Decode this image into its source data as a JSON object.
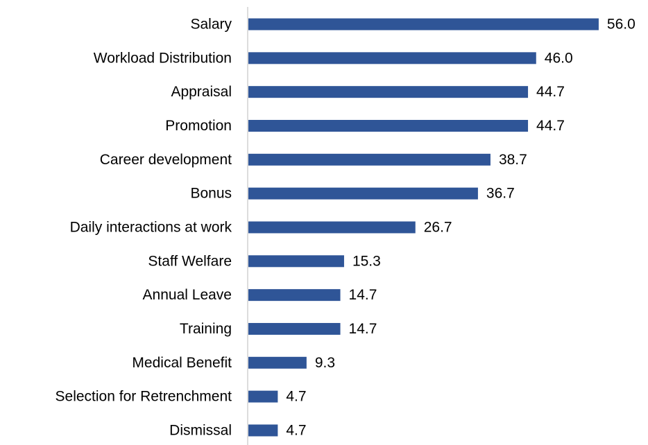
{
  "chart_data": {
    "type": "bar",
    "orientation": "horizontal",
    "categories": [
      "Salary",
      "Workload Distribution",
      "Appraisal",
      "Promotion",
      "Career development",
      "Bonus",
      "Daily interactions at work",
      "Staff Welfare",
      "Annual Leave",
      "Training",
      "Medical Benefit",
      "Selection for Retrenchment",
      "Dismissal"
    ],
    "values": [
      56.0,
      46.0,
      44.7,
      44.7,
      38.7,
      36.7,
      26.7,
      15.3,
      14.7,
      14.7,
      9.3,
      4.7,
      4.7
    ],
    "value_labels": [
      "56.0",
      "46.0",
      "44.7",
      "44.7",
      "38.7",
      "36.7",
      "26.7",
      "15.3",
      "14.7",
      "14.7",
      "9.3",
      "4.7",
      "4.7"
    ],
    "color": "#2f5597",
    "xlim": [
      0,
      60
    ]
  }
}
